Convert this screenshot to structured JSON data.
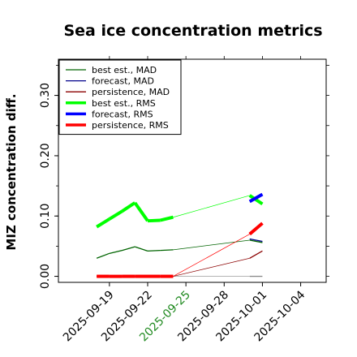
{
  "chart_data": {
    "type": "line",
    "title": "Sea ice concentration metrics",
    "ylabel": "MIZ concentration diff.",
    "xlabel": "",
    "x_dates": [
      "2025-09-18",
      "2025-09-19",
      "2025-09-20",
      "2025-09-21",
      "2025-09-22",
      "2025-09-23",
      "2025-09-24",
      "2025-09-30",
      "2025-10-01"
    ],
    "xlim": [
      "2025-09-15",
      "2025-10-06"
    ],
    "xticks": [
      "2025-09-19",
      "2025-09-22",
      "2025-09-25",
      "2025-09-28",
      "2025-10-01",
      "2025-10-04"
    ],
    "highlight_tick": "2025-09-25",
    "ylim": [
      -0.01,
      0.36
    ],
    "yticks": [
      "0.00",
      "0.10",
      "0.20",
      "0.30"
    ],
    "legend_position": "upper-left",
    "series": [
      {
        "name": "best est., MAD",
        "color": "#006400",
        "width": 1.3,
        "values": [
          0.03,
          0.038,
          0.043,
          0.049,
          0.042,
          0.043,
          0.044,
          0.06,
          0.056
        ]
      },
      {
        "name": "forecast,  MAD",
        "color": "#00008b",
        "width": 1.3,
        "values": [
          null,
          null,
          null,
          null,
          null,
          null,
          null,
          0.062,
          0.058
        ]
      },
      {
        "name": "persistence, MAD",
        "color": "#8b0000",
        "width": 1.3,
        "values": [
          0.0,
          0.0,
          0.0,
          0.0,
          0.0,
          0.0,
          0.0,
          0.03,
          0.042
        ]
      },
      {
        "name": "best est., RMS",
        "color": "#00ff00",
        "width": 4,
        "values": [
          0.082,
          0.095,
          0.108,
          0.122,
          0.092,
          0.093,
          0.098,
          0.134,
          0.12
        ]
      },
      {
        "name": "forecast,  RMS",
        "color": "#0000ff",
        "width": 4,
        "values": [
          null,
          null,
          null,
          null,
          null,
          null,
          null,
          0.124,
          0.136
        ]
      },
      {
        "name": "persistence, RMS",
        "color": "#ff0000",
        "width": 4,
        "values": [
          0.0,
          0.0,
          0.0,
          0.0,
          0.0,
          0.0,
          0.0,
          0.07,
          0.088
        ]
      }
    ],
    "grey_series": {
      "color": "#888888",
      "values": [
        0.0,
        0.0,
        0.0,
        0.0,
        0.0,
        0.0,
        0.0,
        0.0,
        0.0
      ]
    }
  }
}
